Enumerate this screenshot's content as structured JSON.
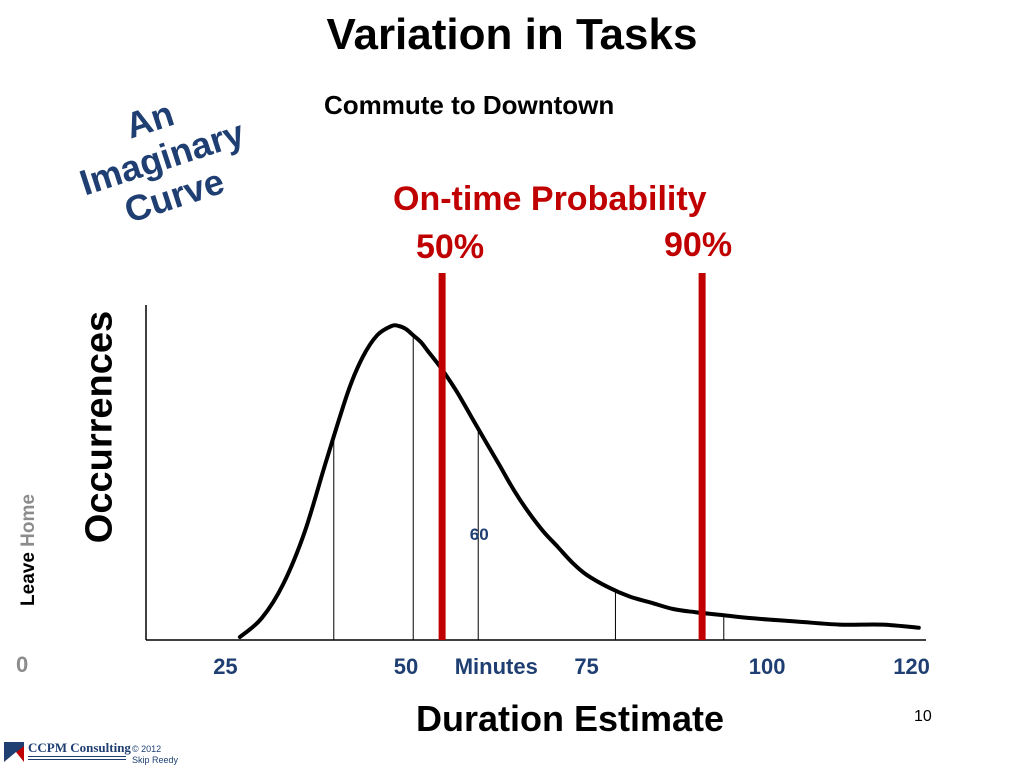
{
  "slide": {
    "title": "Variation in Tasks",
    "subtitle": "Commute to Downtown",
    "annotation_lines": [
      "An",
      "Imaginary",
      "Curve"
    ],
    "page_number": "10",
    "footer": {
      "brand": "CCPM Consulting",
      "copyright_line1": "© 2012",
      "copyright_line2": "Skip Reedy"
    },
    "colors": {
      "title": "#000000",
      "probability": "#c00000",
      "annotation": "#1f3f73",
      "muted": "#8c8c8c"
    }
  },
  "chart_data": {
    "type": "line",
    "title": "On-time Probability",
    "ylabel": "Occurrences",
    "xlabel": "Duration Estimate",
    "x_unit_label": "Minutes",
    "y_origin_label_leave": "Leave",
    "y_origin_label_home": "Home",
    "x_origin_label": "0",
    "x_tick_labels": [
      "25",
      "50",
      "75",
      "100",
      "120"
    ],
    "x_tick_values": [
      25,
      50,
      75,
      100,
      120
    ],
    "xlim": [
      14,
      122
    ],
    "ylim": [
      0,
      1
    ],
    "grid": false,
    "legend": "none",
    "curve": {
      "x": [
        27,
        30,
        33,
        36,
        39,
        42,
        44,
        46,
        48,
        49,
        50,
        51,
        52,
        53,
        55,
        57,
        59,
        61,
        63,
        65,
        67,
        69,
        71,
        73,
        75,
        78,
        81,
        84,
        87,
        90,
        94,
        98,
        104,
        110,
        116,
        121
      ],
      "y": [
        0.0,
        0.06,
        0.17,
        0.34,
        0.57,
        0.79,
        0.9,
        0.97,
        1.0,
        1.0,
        0.99,
        0.97,
        0.95,
        0.92,
        0.86,
        0.79,
        0.71,
        0.63,
        0.55,
        0.47,
        0.4,
        0.34,
        0.29,
        0.24,
        0.2,
        0.16,
        0.13,
        0.11,
        0.09,
        0.08,
        0.07,
        0.06,
        0.05,
        0.04,
        0.04,
        0.03
      ]
    },
    "reference_lines_x": [
      40,
      51,
      60,
      79,
      94
    ],
    "reference_label": "60",
    "probability_markers": [
      {
        "label": "50%",
        "x": 55
      },
      {
        "label": "90%",
        "x": 91
      }
    ],
    "colors": {
      "curve": "#000000",
      "axis": "#000000",
      "tick_labels": "#1f3f73",
      "probability": "#c00000"
    }
  }
}
